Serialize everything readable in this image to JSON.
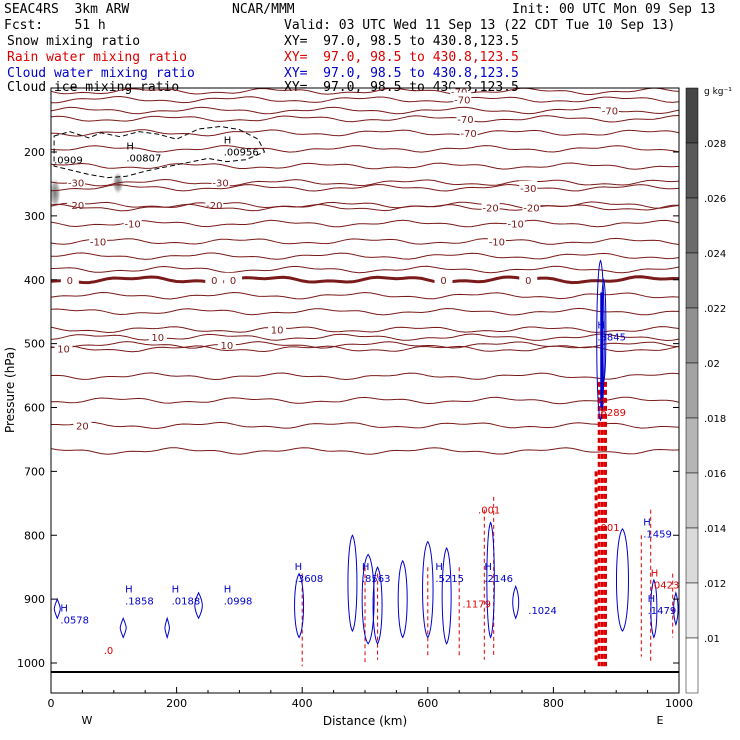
{
  "header": {
    "model": "SEAC4RS  3km ARW",
    "org": "NCAR/MMM",
    "init": "Init: 00 UTC Mon 09 Sep 13",
    "fcst": "Fcst:    51 h",
    "valid": "Valid: 03 UTC Wed 11 Sep 13 (22 CDT Tue 10 Sep 13)"
  },
  "fields": [
    {
      "label": "Snow mixing ratio",
      "xy": "XY=  97.0, 98.5 to 430.8,123.5",
      "color": "#000000"
    },
    {
      "label": "Rain water mixing ratio",
      "xy": "XY=  97.0, 98.5 to 430.8,123.5",
      "color": "#dd0000"
    },
    {
      "label": "Cloud water mixing ratio",
      "xy": "XY=  97.0, 98.5 to 430.8,123.5",
      "color": "#0000cc"
    },
    {
      "label": "Cloud ice mixing ratio",
      "xy": "XY=  97.0, 98.5 to 430.8,123.5",
      "color": "#000000"
    }
  ],
  "chart_data": {
    "type": "contour",
    "xlabel": "Distance (km)",
    "ylabel": "Pressure (hPa)",
    "xlim": [
      0,
      1000
    ],
    "ylim": [
      1050,
      100
    ],
    "x_ticks": [
      0,
      200,
      400,
      600,
      800,
      1000
    ],
    "y_ticks": [
      200,
      300,
      400,
      500,
      600,
      700,
      800,
      900,
      1000
    ],
    "direction_left": "W",
    "direction_right": "E",
    "colorbar": {
      "unit": "g kg⁻¹",
      "ticks": [
        ".01",
        ".012",
        ".014",
        ".016",
        ".018",
        ".02",
        ".022",
        ".024",
        ".026",
        ".028"
      ]
    },
    "temperature_contours": [
      {
        "label": "-70",
        "p": 105,
        "label_x": [
          650
        ]
      },
      {
        "label": "-70",
        "p": 118,
        "label_x": [
          655
        ]
      },
      {
        "label": "-70",
        "p": 135,
        "label_x": [
          890
        ]
      },
      {
        "label": "-70",
        "p": 148,
        "label_x": [
          660
        ]
      },
      {
        "label": "-70",
        "p": 170,
        "label_x": [
          665
        ]
      },
      {
        "label": "",
        "p": 195
      },
      {
        "label": "",
        "p": 222
      },
      {
        "label": "-30",
        "p": 248,
        "label_x": [
          40,
          270
        ]
      },
      {
        "label": "-30",
        "p": 256,
        "label_x": [
          760
        ]
      },
      {
        "label": "-20",
        "p": 283,
        "label_x": [
          40,
          260
        ]
      },
      {
        "label": "-20",
        "p": 287,
        "label_x": [
          700,
          765
        ]
      },
      {
        "label": "-10",
        "p": 312,
        "label_x": [
          130,
          740
        ]
      },
      {
        "label": "-10",
        "p": 340,
        "label_x": [
          75,
          710
        ]
      },
      {
        "label": "",
        "p": 363
      },
      {
        "label": "",
        "p": 384
      },
      {
        "label": "0",
        "p": 400,
        "label_x": [
          30,
          260,
          290,
          625,
          760
        ],
        "bold": true
      },
      {
        "label": "",
        "p": 425
      },
      {
        "label": "",
        "p": 450
      },
      {
        "label": "10",
        "p": 478,
        "label_x": [
          360
        ]
      },
      {
        "label": "10",
        "p": 502,
        "label_x": [
          280
        ]
      },
      {
        "label": "10",
        "p": 490,
        "label_x": [
          170
        ]
      },
      {
        "label": "10",
        "p": 508,
        "label_x": [
          20
        ]
      },
      {
        "label": "",
        "p": 551
      },
      {
        "label": "",
        "p": 589
      },
      {
        "label": "20",
        "p": 628,
        "label_x": [
          50
        ]
      },
      {
        "label": "",
        "p": 668
      }
    ],
    "snow_maxima": [
      {
        "label": "H",
        "value": ".00807",
        "x": 120,
        "p": 212
      },
      {
        "label": "H",
        "value": ".00956",
        "x": 275,
        "p": 202
      },
      {
        "label": "",
        "value": ".0909",
        "x": 5,
        "p": 215
      }
    ],
    "rain_maxima": [
      {
        "label": "H",
        "value": ".6289",
        "x": 870,
        "p": 610
      },
      {
        "label": "H",
        "value": ".0423",
        "x": 955,
        "p": 880
      },
      {
        "label": "",
        "value": ".001",
        "x": 680,
        "p": 763
      },
      {
        "label": "",
        "value": ".001",
        "x": 870,
        "p": 790
      },
      {
        "label": "",
        "value": ".1179",
        "x": 655,
        "p": 910
      },
      {
        "label": "",
        "value": ".0",
        "x": 84,
        "p": 983
      }
    ],
    "cloud_water_maxima": [
      {
        "label": "H",
        "value": ".0578",
        "x": 15,
        "p": 935
      },
      {
        "label": "H",
        "value": ".1858",
        "x": 118,
        "p": 905
      },
      {
        "label": "H",
        "value": ".0188",
        "x": 192,
        "p": 905
      },
      {
        "label": "H",
        "value": ".0998",
        "x": 275,
        "p": 905
      },
      {
        "label": "H",
        "value": ".3608",
        "x": 388,
        "p": 870
      },
      {
        "label": "H",
        "value": ".8563",
        "x": 495,
        "p": 870
      },
      {
        "label": "H",
        "value": ".5215",
        "x": 612,
        "p": 870
      },
      {
        "label": "H",
        "value": ".2146",
        "x": 690,
        "p": 870
      },
      {
        "label": "",
        "value": ".1024",
        "x": 760,
        "p": 920
      },
      {
        "label": "H",
        "value": ".1459",
        "x": 943,
        "p": 800
      },
      {
        "label": "H",
        "value": ".1479",
        "x": 950,
        "p": 920
      },
      {
        "label": "H",
        "value": ".8845",
        "x": 870,
        "p": 492
      }
    ]
  }
}
